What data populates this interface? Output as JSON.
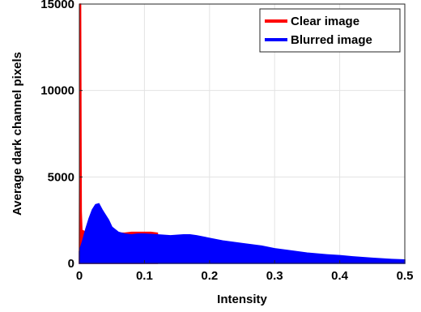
{
  "chart_data": {
    "type": "area",
    "xlabel": "Intensity",
    "ylabel": "Average dark channel pixels",
    "xlim": [
      0,
      0.5
    ],
    "ylim": [
      0,
      15000
    ],
    "xticks": [
      0,
      0.1,
      0.2,
      0.3,
      0.4,
      0.5
    ],
    "xtick_labels": [
      "0",
      "0.1",
      "0.2",
      "0.3",
      "0.4",
      "0.5"
    ],
    "yticks": [
      0,
      5000,
      10000,
      15000
    ],
    "ytick_labels": [
      "0",
      "5000",
      "10000",
      "15000"
    ],
    "grid": true,
    "legend_position": "top-right",
    "series": [
      {
        "name": "Clear image",
        "color": "#ff0000",
        "x": [
          0,
          0.001,
          0.002,
          0.003,
          0.004,
          0.005,
          0.008,
          0.012,
          0.02,
          0.03,
          0.04,
          0.05,
          0.06,
          0.07,
          0.08,
          0.09,
          0.1,
          0.11,
          0.12
        ],
        "y": [
          0,
          15000,
          15000,
          3000,
          1900,
          1900,
          1850,
          1850,
          1850,
          1800,
          1800,
          1750,
          1750,
          1750,
          1800,
          1800,
          1800,
          1800,
          1750
        ]
      },
      {
        "name": "Blurred image",
        "color": "#0000ff",
        "x": [
          0,
          0.005,
          0.01,
          0.015,
          0.02,
          0.025,
          0.03,
          0.035,
          0.04,
          0.045,
          0.05,
          0.06,
          0.07,
          0.08,
          0.09,
          0.1,
          0.12,
          0.14,
          0.16,
          0.17,
          0.18,
          0.2,
          0.22,
          0.25,
          0.28,
          0.3,
          0.32,
          0.35,
          0.38,
          0.4,
          0.42,
          0.45,
          0.48,
          0.5
        ],
        "y": [
          700,
          1300,
          2000,
          2600,
          3100,
          3400,
          3450,
          3100,
          2800,
          2500,
          2100,
          1800,
          1700,
          1650,
          1700,
          1700,
          1650,
          1600,
          1650,
          1650,
          1600,
          1450,
          1300,
          1150,
          1000,
          850,
          750,
          600,
          500,
          450,
          380,
          300,
          230,
          200
        ]
      }
    ]
  }
}
